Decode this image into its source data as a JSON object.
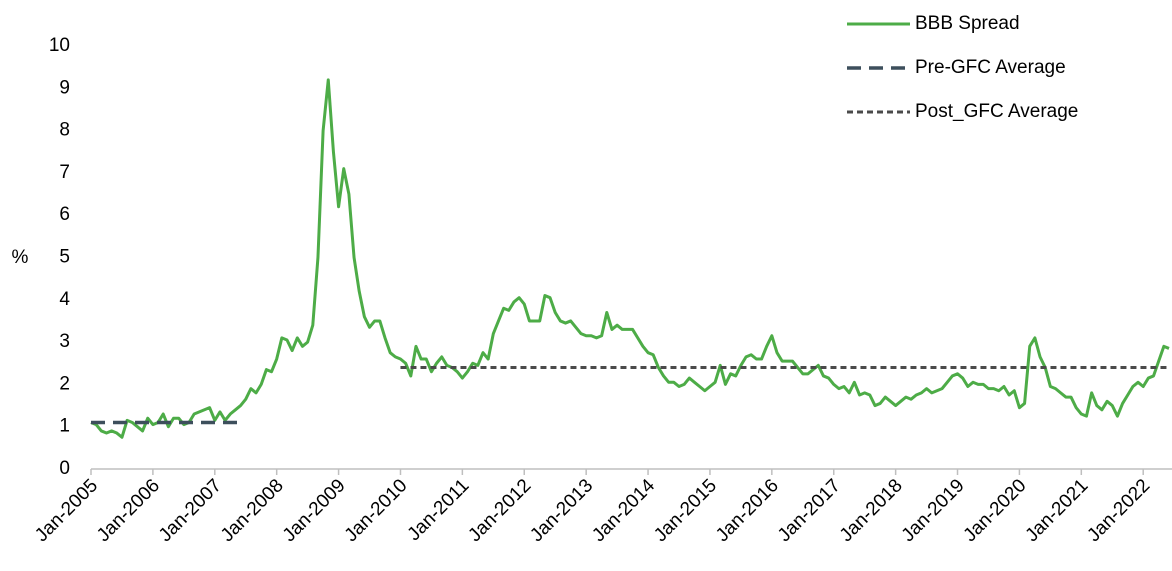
{
  "chart_data": {
    "type": "line",
    "y_label": "%",
    "ylim": [
      0,
      10
    ],
    "yticks": [
      0,
      1,
      2,
      3,
      4,
      5,
      6,
      7,
      8,
      9,
      10
    ],
    "legend": "top-right",
    "categories": [
      "Jan-2005",
      null,
      null,
      null,
      null,
      null,
      null,
      null,
      null,
      null,
      null,
      null,
      "Jan-2006",
      null,
      null,
      null,
      null,
      null,
      null,
      null,
      null,
      null,
      null,
      null,
      "Jan-2007",
      null,
      null,
      null,
      null,
      null,
      null,
      null,
      null,
      null,
      null,
      null,
      "Jan-2008",
      null,
      null,
      null,
      null,
      null,
      null,
      null,
      null,
      null,
      null,
      null,
      "Jan-2009",
      null,
      null,
      null,
      null,
      null,
      null,
      null,
      null,
      null,
      null,
      null,
      "Jan-2010",
      null,
      null,
      null,
      null,
      null,
      null,
      null,
      null,
      null,
      null,
      null,
      "Jan-2011",
      null,
      null,
      null,
      null,
      null,
      null,
      null,
      null,
      null,
      null,
      null,
      "Jan-2012",
      null,
      null,
      null,
      null,
      null,
      null,
      null,
      null,
      null,
      null,
      null,
      "Jan-2013",
      null,
      null,
      null,
      null,
      null,
      null,
      null,
      null,
      null,
      null,
      null,
      "Jan-2014",
      null,
      null,
      null,
      null,
      null,
      null,
      null,
      null,
      null,
      null,
      null,
      "Jan-2015",
      null,
      null,
      null,
      null,
      null,
      null,
      null,
      null,
      null,
      null,
      null,
      "Jan-2016",
      null,
      null,
      null,
      null,
      null,
      null,
      null,
      null,
      null,
      null,
      null,
      "Jan-2017",
      null,
      null,
      null,
      null,
      null,
      null,
      null,
      null,
      null,
      null,
      null,
      "Jan-2018",
      null,
      null,
      null,
      null,
      null,
      null,
      null,
      null,
      null,
      null,
      null,
      "Jan-2019",
      null,
      null,
      null,
      null,
      null,
      null,
      null,
      null,
      null,
      null,
      null,
      "Jan-2020",
      null,
      null,
      null,
      null,
      null,
      null,
      null,
      null,
      null,
      null,
      null,
      "Jan-2021",
      null,
      null,
      null,
      null,
      null,
      null,
      null,
      null,
      null,
      null,
      null,
      "Jan-2022",
      null,
      null,
      null,
      null,
      null
    ],
    "series": [
      {
        "name": "BBB Spread",
        "color": "#4dac47",
        "style": "solid",
        "values": [
          1.1,
          1.05,
          0.9,
          0.85,
          0.9,
          0.85,
          0.75,
          1.15,
          1.1,
          1.0,
          0.9,
          1.2,
          1.05,
          1.1,
          1.3,
          1.0,
          1.2,
          1.2,
          1.05,
          1.1,
          1.3,
          1.35,
          1.4,
          1.45,
          1.15,
          1.35,
          1.15,
          1.3,
          1.4,
          1.5,
          1.65,
          1.9,
          1.8,
          2.0,
          2.35,
          2.3,
          2.6,
          3.1,
          3.05,
          2.8,
          3.1,
          2.9,
          3.0,
          3.4,
          5.0,
          8.0,
          9.2,
          7.5,
          6.2,
          7.1,
          6.5,
          5.0,
          4.2,
          3.6,
          3.35,
          3.5,
          3.5,
          3.1,
          2.75,
          2.65,
          2.6,
          2.5,
          2.2,
          2.9,
          2.6,
          2.6,
          2.3,
          2.5,
          2.65,
          2.45,
          2.4,
          2.3,
          2.15,
          2.3,
          2.5,
          2.45,
          2.75,
          2.6,
          3.2,
          3.5,
          3.8,
          3.75,
          3.95,
          4.05,
          3.9,
          3.5,
          3.5,
          3.5,
          4.1,
          4.05,
          3.7,
          3.5,
          3.45,
          3.5,
          3.35,
          3.2,
          3.15,
          3.15,
          3.1,
          3.15,
          3.7,
          3.3,
          3.4,
          3.3,
          3.3,
          3.3,
          3.1,
          2.9,
          2.75,
          2.7,
          2.4,
          2.2,
          2.05,
          2.05,
          1.95,
          2.0,
          2.15,
          2.05,
          1.95,
          1.85,
          1.95,
          2.05,
          2.45,
          2.0,
          2.25,
          2.2,
          2.45,
          2.65,
          2.7,
          2.6,
          2.6,
          2.9,
          3.15,
          2.75,
          2.55,
          2.55,
          2.55,
          2.4,
          2.25,
          2.25,
          2.35,
          2.45,
          2.2,
          2.15,
          2.0,
          1.9,
          1.95,
          1.8,
          2.05,
          1.75,
          1.8,
          1.75,
          1.5,
          1.55,
          1.7,
          1.6,
          1.5,
          1.6,
          1.7,
          1.65,
          1.75,
          1.8,
          1.9,
          1.8,
          1.85,
          1.9,
          2.05,
          2.2,
          2.25,
          2.15,
          1.95,
          2.05,
          2.0,
          2.0,
          1.9,
          1.9,
          1.85,
          1.95,
          1.75,
          1.85,
          1.45,
          1.55,
          2.9,
          3.1,
          2.65,
          2.4,
          1.95,
          1.9,
          1.8,
          1.7,
          1.7,
          1.45,
          1.3,
          1.25,
          1.8,
          1.5,
          1.4,
          1.6,
          1.5,
          1.25,
          1.55,
          1.75,
          1.95,
          2.05,
          1.95,
          2.15,
          2.2,
          2.55,
          2.9,
          2.85
        ]
      },
      {
        "name": "Pre-GFC Average",
        "color": "#3d4f5c",
        "style": "dash",
        "values": [
          1.1,
          1.1,
          1.1,
          1.1,
          1.1,
          1.1,
          1.1,
          1.1,
          1.1,
          1.1,
          1.1,
          1.1,
          1.1,
          1.1,
          1.1,
          1.1,
          1.1,
          1.1,
          1.1,
          1.1,
          1.1,
          1.1,
          1.1,
          1.1,
          1.1,
          1.1,
          1.1,
          1.1,
          1.1,
          1.1,
          null,
          null,
          null,
          null,
          null,
          null,
          null,
          null,
          null,
          null,
          null,
          null,
          null,
          null,
          null,
          null,
          null,
          null,
          null,
          null,
          null,
          null,
          null,
          null,
          null,
          null,
          null,
          null,
          null,
          null,
          null,
          null,
          null,
          null,
          null,
          null,
          null,
          null,
          null,
          null,
          null,
          null,
          null,
          null,
          null,
          null,
          null,
          null,
          null,
          null,
          null,
          null,
          null,
          null,
          null,
          null,
          null,
          null,
          null,
          null,
          null,
          null,
          null,
          null,
          null,
          null,
          null,
          null,
          null,
          null,
          null,
          null,
          null,
          null,
          null,
          null,
          null,
          null,
          null,
          null,
          null,
          null,
          null,
          null,
          null,
          null,
          null,
          null,
          null,
          null,
          null,
          null,
          null,
          null,
          null,
          null,
          null,
          null,
          null,
          null,
          null,
          null,
          null,
          null,
          null,
          null,
          null,
          null,
          null,
          null,
          null,
          null,
          null,
          null,
          null,
          null,
          null,
          null,
          null,
          null,
          null,
          null,
          null,
          null,
          null,
          null,
          null,
          null,
          null,
          null,
          null,
          null,
          null,
          null,
          null,
          null,
          null,
          null,
          null,
          null,
          null,
          null,
          null,
          null,
          null,
          null,
          null,
          null,
          null,
          null,
          null,
          null,
          null,
          null,
          null,
          null,
          null,
          null,
          null,
          null,
          null,
          null,
          null,
          null,
          null,
          null,
          null,
          null,
          null,
          null,
          null,
          null,
          null,
          null,
          null,
          null,
          null,
          null,
          null,
          null
        ]
      },
      {
        "name": "Post_GFC Average",
        "color": "#4a4a4a",
        "style": "dot",
        "values": [
          null,
          null,
          null,
          null,
          null,
          null,
          null,
          null,
          null,
          null,
          null,
          null,
          null,
          null,
          null,
          null,
          null,
          null,
          null,
          null,
          null,
          null,
          null,
          null,
          null,
          null,
          null,
          null,
          null,
          null,
          null,
          null,
          null,
          null,
          null,
          null,
          null,
          null,
          null,
          null,
          null,
          null,
          null,
          null,
          null,
          null,
          null,
          null,
          null,
          null,
          null,
          null,
          null,
          null,
          null,
          null,
          null,
          null,
          null,
          null,
          2.4,
          2.4,
          2.4,
          2.4,
          2.4,
          2.4,
          2.4,
          2.4,
          2.4,
          2.4,
          2.4,
          2.4,
          2.4,
          2.4,
          2.4,
          2.4,
          2.4,
          2.4,
          2.4,
          2.4,
          2.4,
          2.4,
          2.4,
          2.4,
          2.4,
          2.4,
          2.4,
          2.4,
          2.4,
          2.4,
          2.4,
          2.4,
          2.4,
          2.4,
          2.4,
          2.4,
          2.4,
          2.4,
          2.4,
          2.4,
          2.4,
          2.4,
          2.4,
          2.4,
          2.4,
          2.4,
          2.4,
          2.4,
          2.4,
          2.4,
          2.4,
          2.4,
          2.4,
          2.4,
          2.4,
          2.4,
          2.4,
          2.4,
          2.4,
          2.4,
          2.4,
          2.4,
          2.4,
          2.4,
          2.4,
          2.4,
          2.4,
          2.4,
          2.4,
          2.4,
          2.4,
          2.4,
          2.4,
          2.4,
          2.4,
          2.4,
          2.4,
          2.4,
          2.4,
          2.4,
          2.4,
          2.4,
          2.4,
          2.4,
          2.4,
          2.4,
          2.4,
          2.4,
          2.4,
          2.4,
          2.4,
          2.4,
          2.4,
          2.4,
          2.4,
          2.4,
          2.4,
          2.4,
          2.4,
          2.4,
          2.4,
          2.4,
          2.4,
          2.4,
          2.4,
          2.4,
          2.4,
          2.4,
          2.4,
          2.4,
          2.4,
          2.4,
          2.4,
          2.4,
          2.4,
          2.4,
          2.4,
          2.4,
          2.4,
          2.4,
          2.4,
          2.4,
          2.4,
          2.4,
          2.4,
          2.4,
          2.4,
          2.4,
          2.4,
          2.4,
          2.4,
          2.4,
          2.4,
          2.4,
          2.4,
          2.4,
          2.4,
          2.4,
          2.4,
          2.4,
          2.4,
          2.4,
          2.4,
          2.4,
          2.4,
          2.4,
          2.4,
          2.4,
          2.4,
          2.4
        ]
      }
    ]
  }
}
